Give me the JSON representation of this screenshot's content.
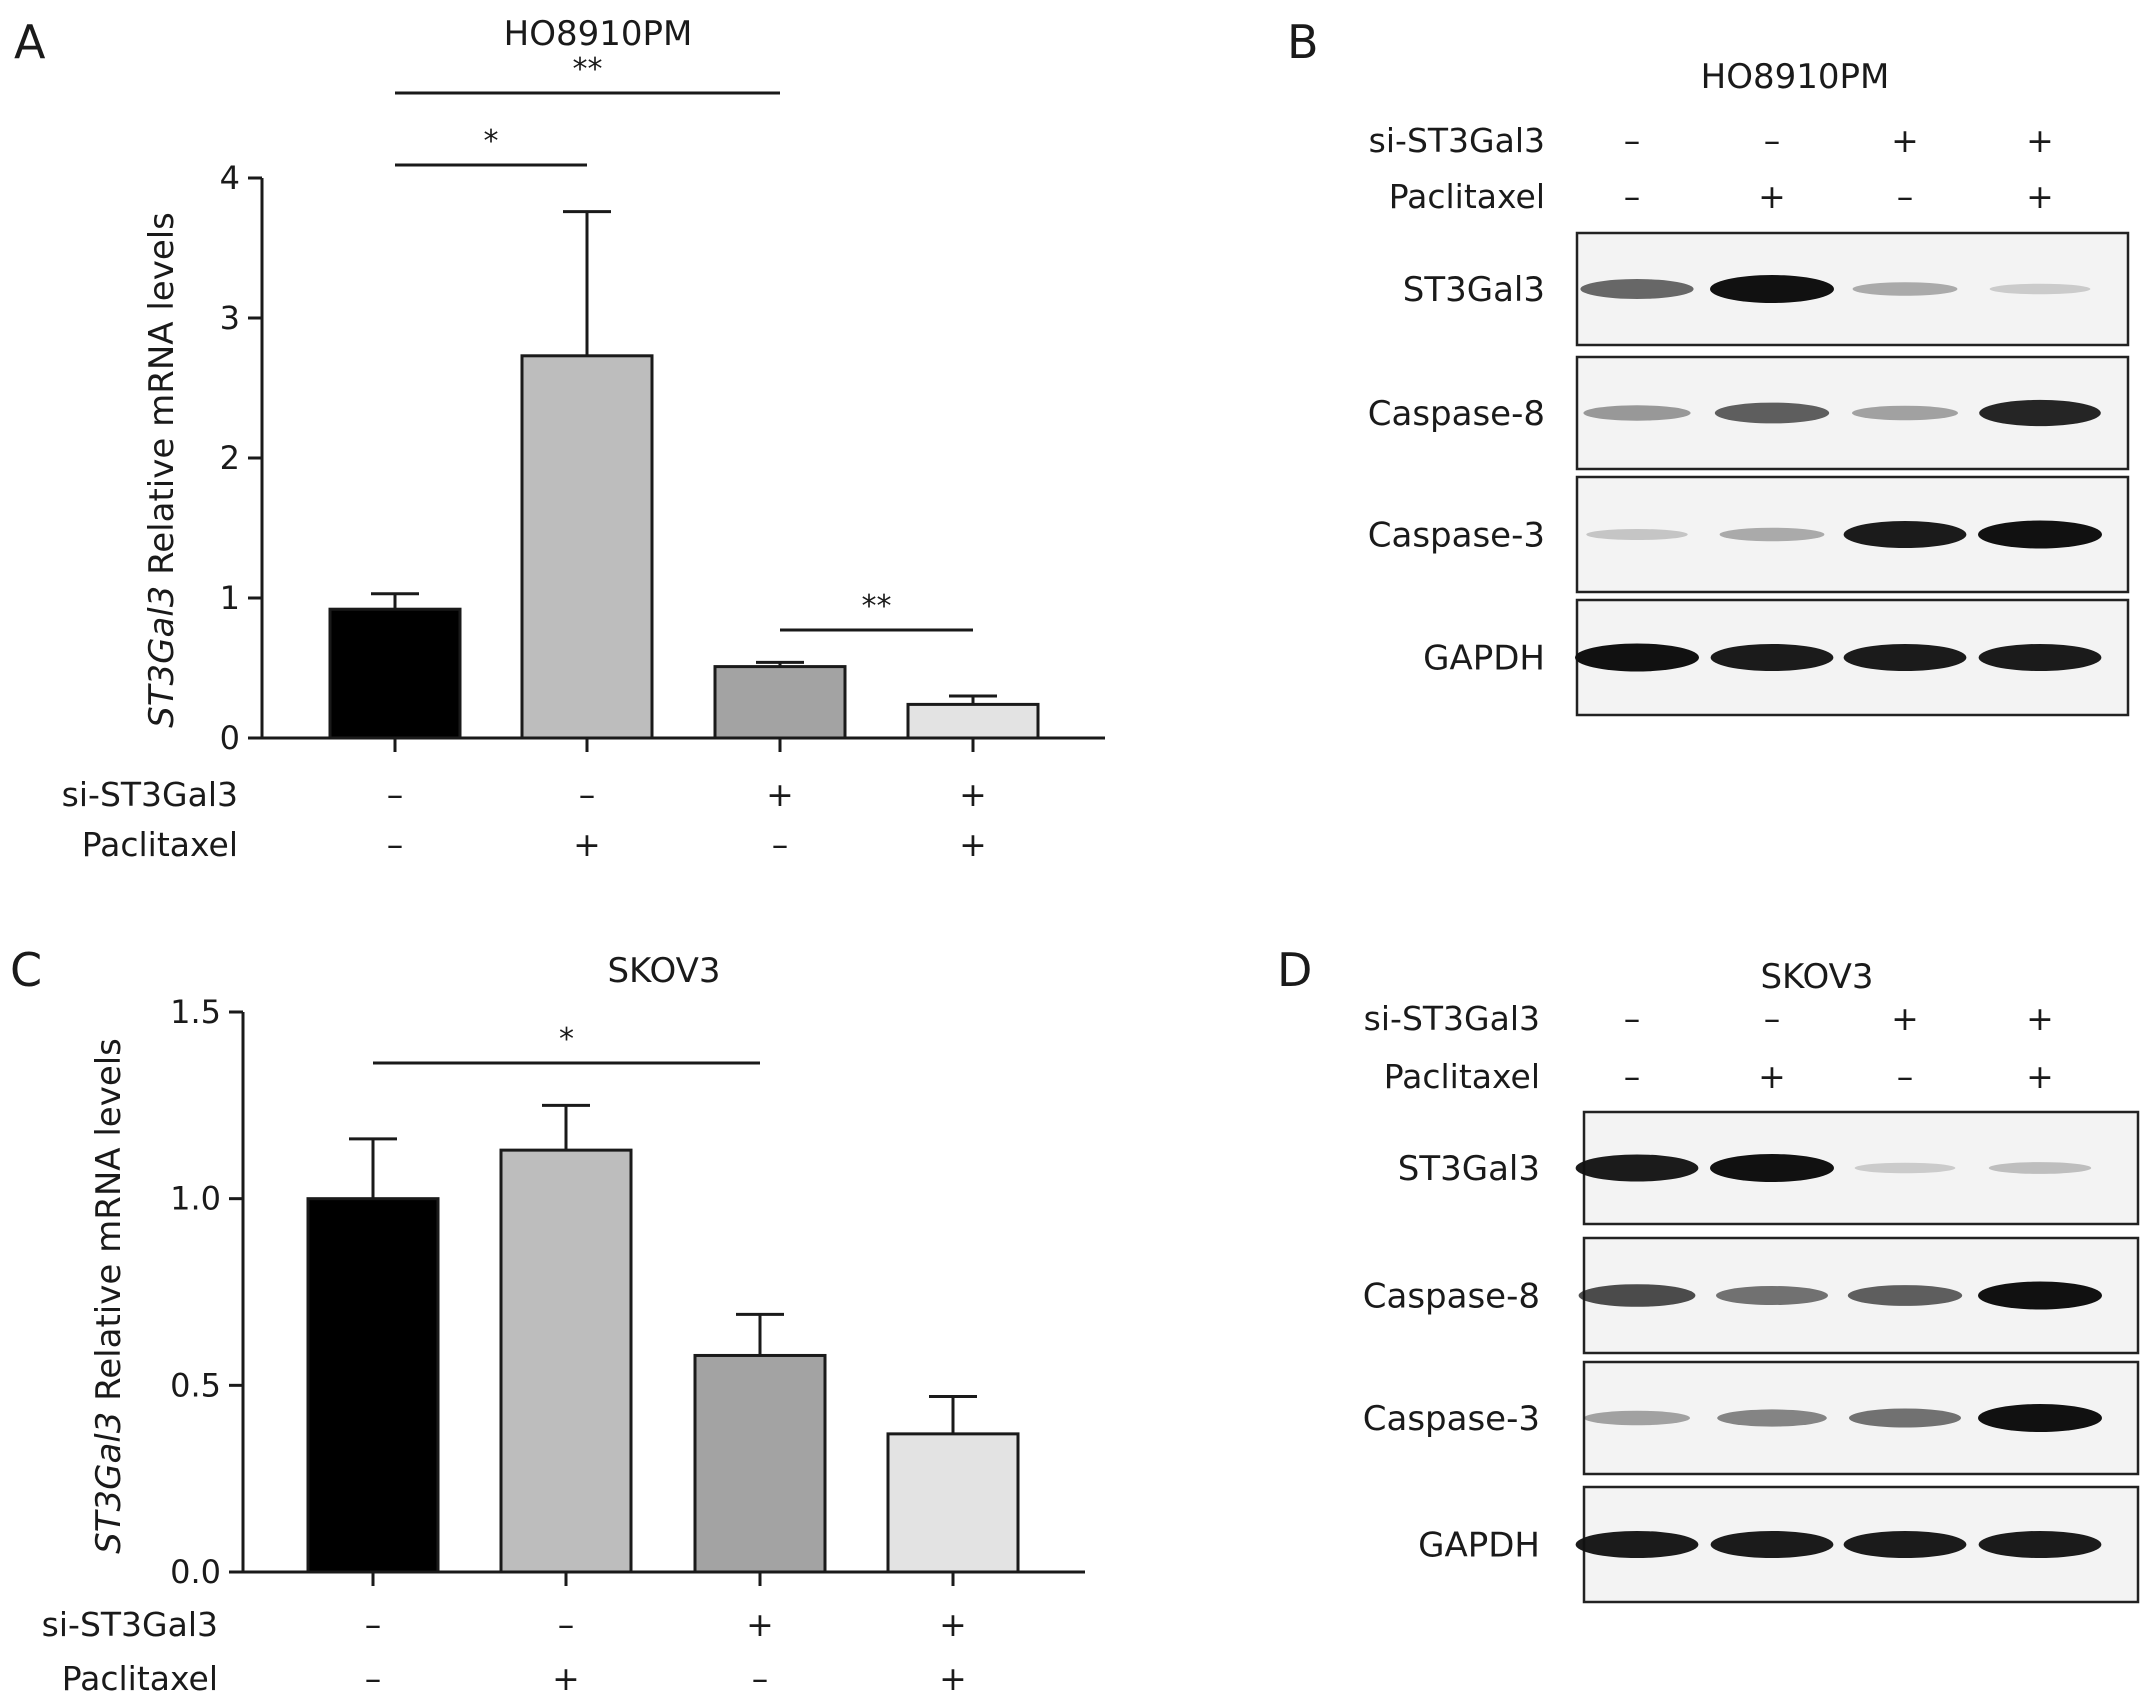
{
  "colors": {
    "bar_fills": [
      "#000000",
      "#bdbdbd",
      "#a3a3a3",
      "#e3e3e3"
    ],
    "axis": "#1a1a1a"
  },
  "panels": {
    "A": {
      "letter": "A",
      "title": "HO8910PM"
    },
    "B": {
      "letter": "B",
      "title": "HO8910PM"
    },
    "C": {
      "letter": "C",
      "title": "SKOV3"
    },
    "D": {
      "letter": "D",
      "title": "SKOV3"
    }
  },
  "conditions": {
    "si_label": "si-ST3Gal3",
    "pac_label": "Paclitaxel",
    "si": [
      "–",
      "–",
      "+",
      "+"
    ],
    "pac": [
      "–",
      "+",
      "–",
      "+"
    ]
  },
  "ylabel": {
    "gene": "ST3Gal3",
    "rest": " Relative mRNA levels"
  },
  "chart_data": [
    {
      "type": "bar",
      "panel": "A",
      "title": "HO8910PM",
      "ylabel": "ST3Gal3 Relative mRNA levels",
      "categories": [
        "– / –",
        "– / +",
        "+ / –",
        "+ / +"
      ],
      "values": [
        0.92,
        2.73,
        0.51,
        0.24
      ],
      "errors": [
        0.11,
        1.03,
        0.03,
        0.06
      ],
      "ylim": [
        0,
        4
      ],
      "yticks": [
        "0",
        "1",
        "2",
        "3",
        "4"
      ],
      "significance": [
        {
          "from": 0,
          "to": 1,
          "label": "*"
        },
        {
          "from": 0,
          "to": 2,
          "label": "**"
        },
        {
          "from": 2,
          "to": 3,
          "label": "**"
        }
      ]
    },
    {
      "type": "bar",
      "panel": "C",
      "title": "SKOV3",
      "ylabel": "ST3Gal3 Relative mRNA levels",
      "categories": [
        "– / –",
        "– / +",
        "+ / –",
        "+ / +"
      ],
      "values": [
        1.0,
        1.13,
        0.58,
        0.37
      ],
      "errors": [
        0.16,
        0.12,
        0.11,
        0.1
      ],
      "ylim": [
        0,
        1.5
      ],
      "yticks": [
        "0.0",
        "0.5",
        "1.0",
        "1.5"
      ],
      "significance": [
        {
          "from": 0,
          "to": 2,
          "label": "*"
        }
      ]
    }
  ],
  "westerns": {
    "B": {
      "bands": [
        {
          "label": "ST3Gal3",
          "intensities": [
            0.55,
            1.0,
            0.2,
            0.03
          ]
        },
        {
          "label": "Caspase-8",
          "intensities": [
            0.3,
            0.6,
            0.25,
            0.9
          ]
        },
        {
          "label": "Caspase-3",
          "intensities": [
            0.06,
            0.2,
            0.95,
            1.0
          ]
        },
        {
          "label": "GAPDH",
          "intensities": [
            1.0,
            0.95,
            0.95,
            0.95
          ]
        }
      ]
    },
    "D": {
      "bands": [
        {
          "label": "ST3Gal3",
          "intensities": [
            0.95,
            1.0,
            0.03,
            0.1
          ]
        },
        {
          "label": "Caspase-8",
          "intensities": [
            0.7,
            0.5,
            0.6,
            1.0
          ]
        },
        {
          "label": "Caspase-3",
          "intensities": [
            0.25,
            0.4,
            0.5,
            1.0
          ]
        },
        {
          "label": "GAPDH",
          "intensities": [
            0.95,
            0.95,
            0.95,
            0.95
          ]
        }
      ]
    }
  }
}
